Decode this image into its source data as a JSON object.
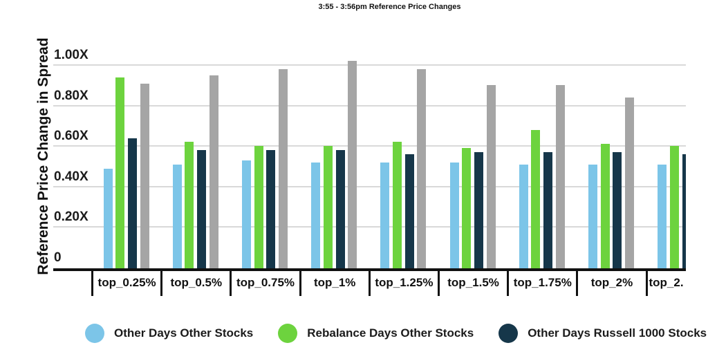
{
  "title": "3:55 - 3:56pm Reference Price Changes",
  "colors": {
    "bar_blue": "#7CC5E8",
    "bar_green": "#6DD33E",
    "bar_navy": "#16374A",
    "bar_gray": "#A5A5A5",
    "gridline": "#D9D9D9",
    "axis": "#111111",
    "text": "#1B1B1B"
  },
  "chart_data": {
    "type": "bar",
    "title": "3:55 - 3:56pm Reference Price Changes",
    "xlabel": "",
    "ylabel": "Reference Price Change in Spread",
    "ylim": [
      0,
      1.15
    ],
    "grid": true,
    "legend_position": "bottom",
    "y_ticks": [
      {
        "label": "1.00X",
        "value": 1.0
      },
      {
        "label": "0.80X",
        "value": 0.8
      },
      {
        "label": "0.60X",
        "value": 0.6
      },
      {
        "label": "0.40X",
        "value": 0.4
      },
      {
        "label": "0.20X",
        "value": 0.2
      },
      {
        "label": "0",
        "value": 0.0
      }
    ],
    "categories": [
      "top_0.25%",
      "top_0.5%",
      "top_0.75%",
      "top_1%",
      "top_1.25%",
      "top_1.5%",
      "top_1.75%",
      "top_2%",
      "top_2."
    ],
    "series": [
      {
        "name": "Other Days Other Stocks",
        "slug": "other-days-other-stocks",
        "color": "#7CC5E8",
        "in_legend": true,
        "values": [
          0.49,
          0.51,
          0.53,
          0.52,
          0.52,
          0.52,
          0.51,
          0.51,
          0.51
        ]
      },
      {
        "name": "Rebalance Days Other Stocks",
        "slug": "rebalance-days-other-stocks",
        "color": "#6DD33E",
        "in_legend": true,
        "values": [
          0.94,
          0.62,
          0.6,
          0.6,
          0.62,
          0.59,
          0.68,
          0.61,
          0.6
        ]
      },
      {
        "name": "Other Days Russell 1000 Stocks",
        "slug": "other-days-russell-1000-stocks",
        "color": "#16374A",
        "in_legend": true,
        "values": [
          0.64,
          0.58,
          0.58,
          0.58,
          0.56,
          0.57,
          0.57,
          0.57,
          0.56
        ]
      },
      {
        "name": "",
        "slug": "gray-unlabeled",
        "color": "#A5A5A5",
        "in_legend": false,
        "values": [
          0.91,
          0.95,
          0.98,
          1.02,
          0.98,
          0.9,
          0.9,
          0.84,
          null
        ]
      }
    ]
  }
}
